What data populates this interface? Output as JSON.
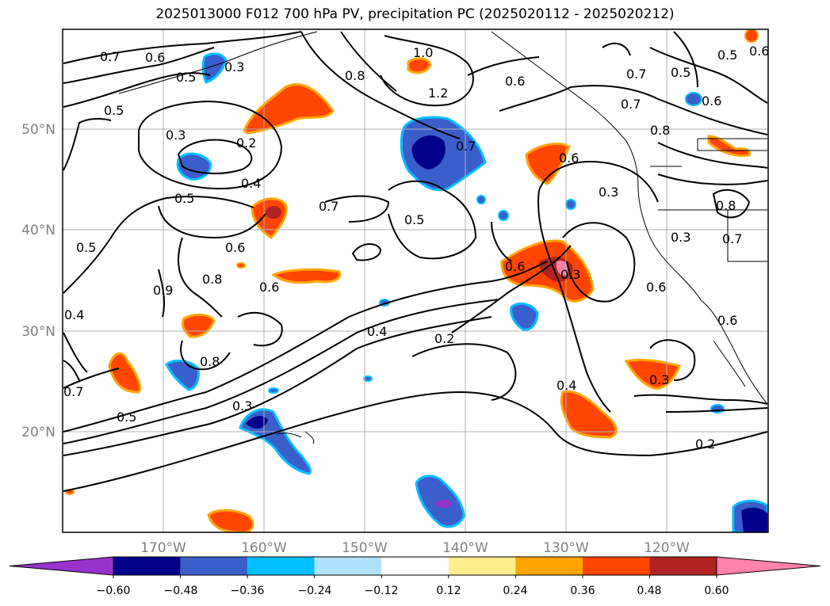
{
  "title": "2025013000 F012 700 hPa PV, precipitation PC (2025020112 - 2025020212)",
  "lat_labels": [
    "50°N",
    "40°N",
    "30°N",
    "20°N"
  ],
  "lon_labels": [
    "170°W",
    "160°W",
    "150°W",
    "140°W",
    "130°W",
    "120°W"
  ],
  "contour_labels": [
    "0.7",
    "0.6",
    "0.5",
    "0.3",
    "1.0",
    "1.2",
    "0.8",
    "0.6",
    "0.7",
    "0.5",
    "0.5",
    "0.6",
    "0.7",
    "0.3",
    "0.2",
    "0.4",
    "0.5",
    "0.7",
    "0.5",
    "0.3",
    "0.8",
    "0.5",
    "0.7",
    "0.8",
    "0.6",
    "0.6",
    "0.9",
    "0.6",
    "0.6",
    "0.3",
    "0.6",
    "0.5",
    "0.4",
    "0.4",
    "0.2",
    "0.8",
    "0.4",
    "0.3",
    "0.7",
    "0.5",
    "0.3",
    "0.2",
    "0.8",
    "0.7",
    "0.6",
    "0.3",
    "0.6"
  ],
  "colorbar": {
    "ticks": [
      "−0.60",
      "−0.48",
      "−0.36",
      "−0.24",
      "−0.12",
      "0.12",
      "0.24",
      "0.36",
      "0.48",
      "0.60"
    ],
    "colors": [
      "#9932cc",
      "#00008b",
      "#3a5fcd",
      "#00bfff",
      "#b0e2ff",
      "#ffffff",
      "#ffec8b",
      "#ffa500",
      "#ff4500",
      "#b22222",
      "#ff82ab"
    ]
  }
}
